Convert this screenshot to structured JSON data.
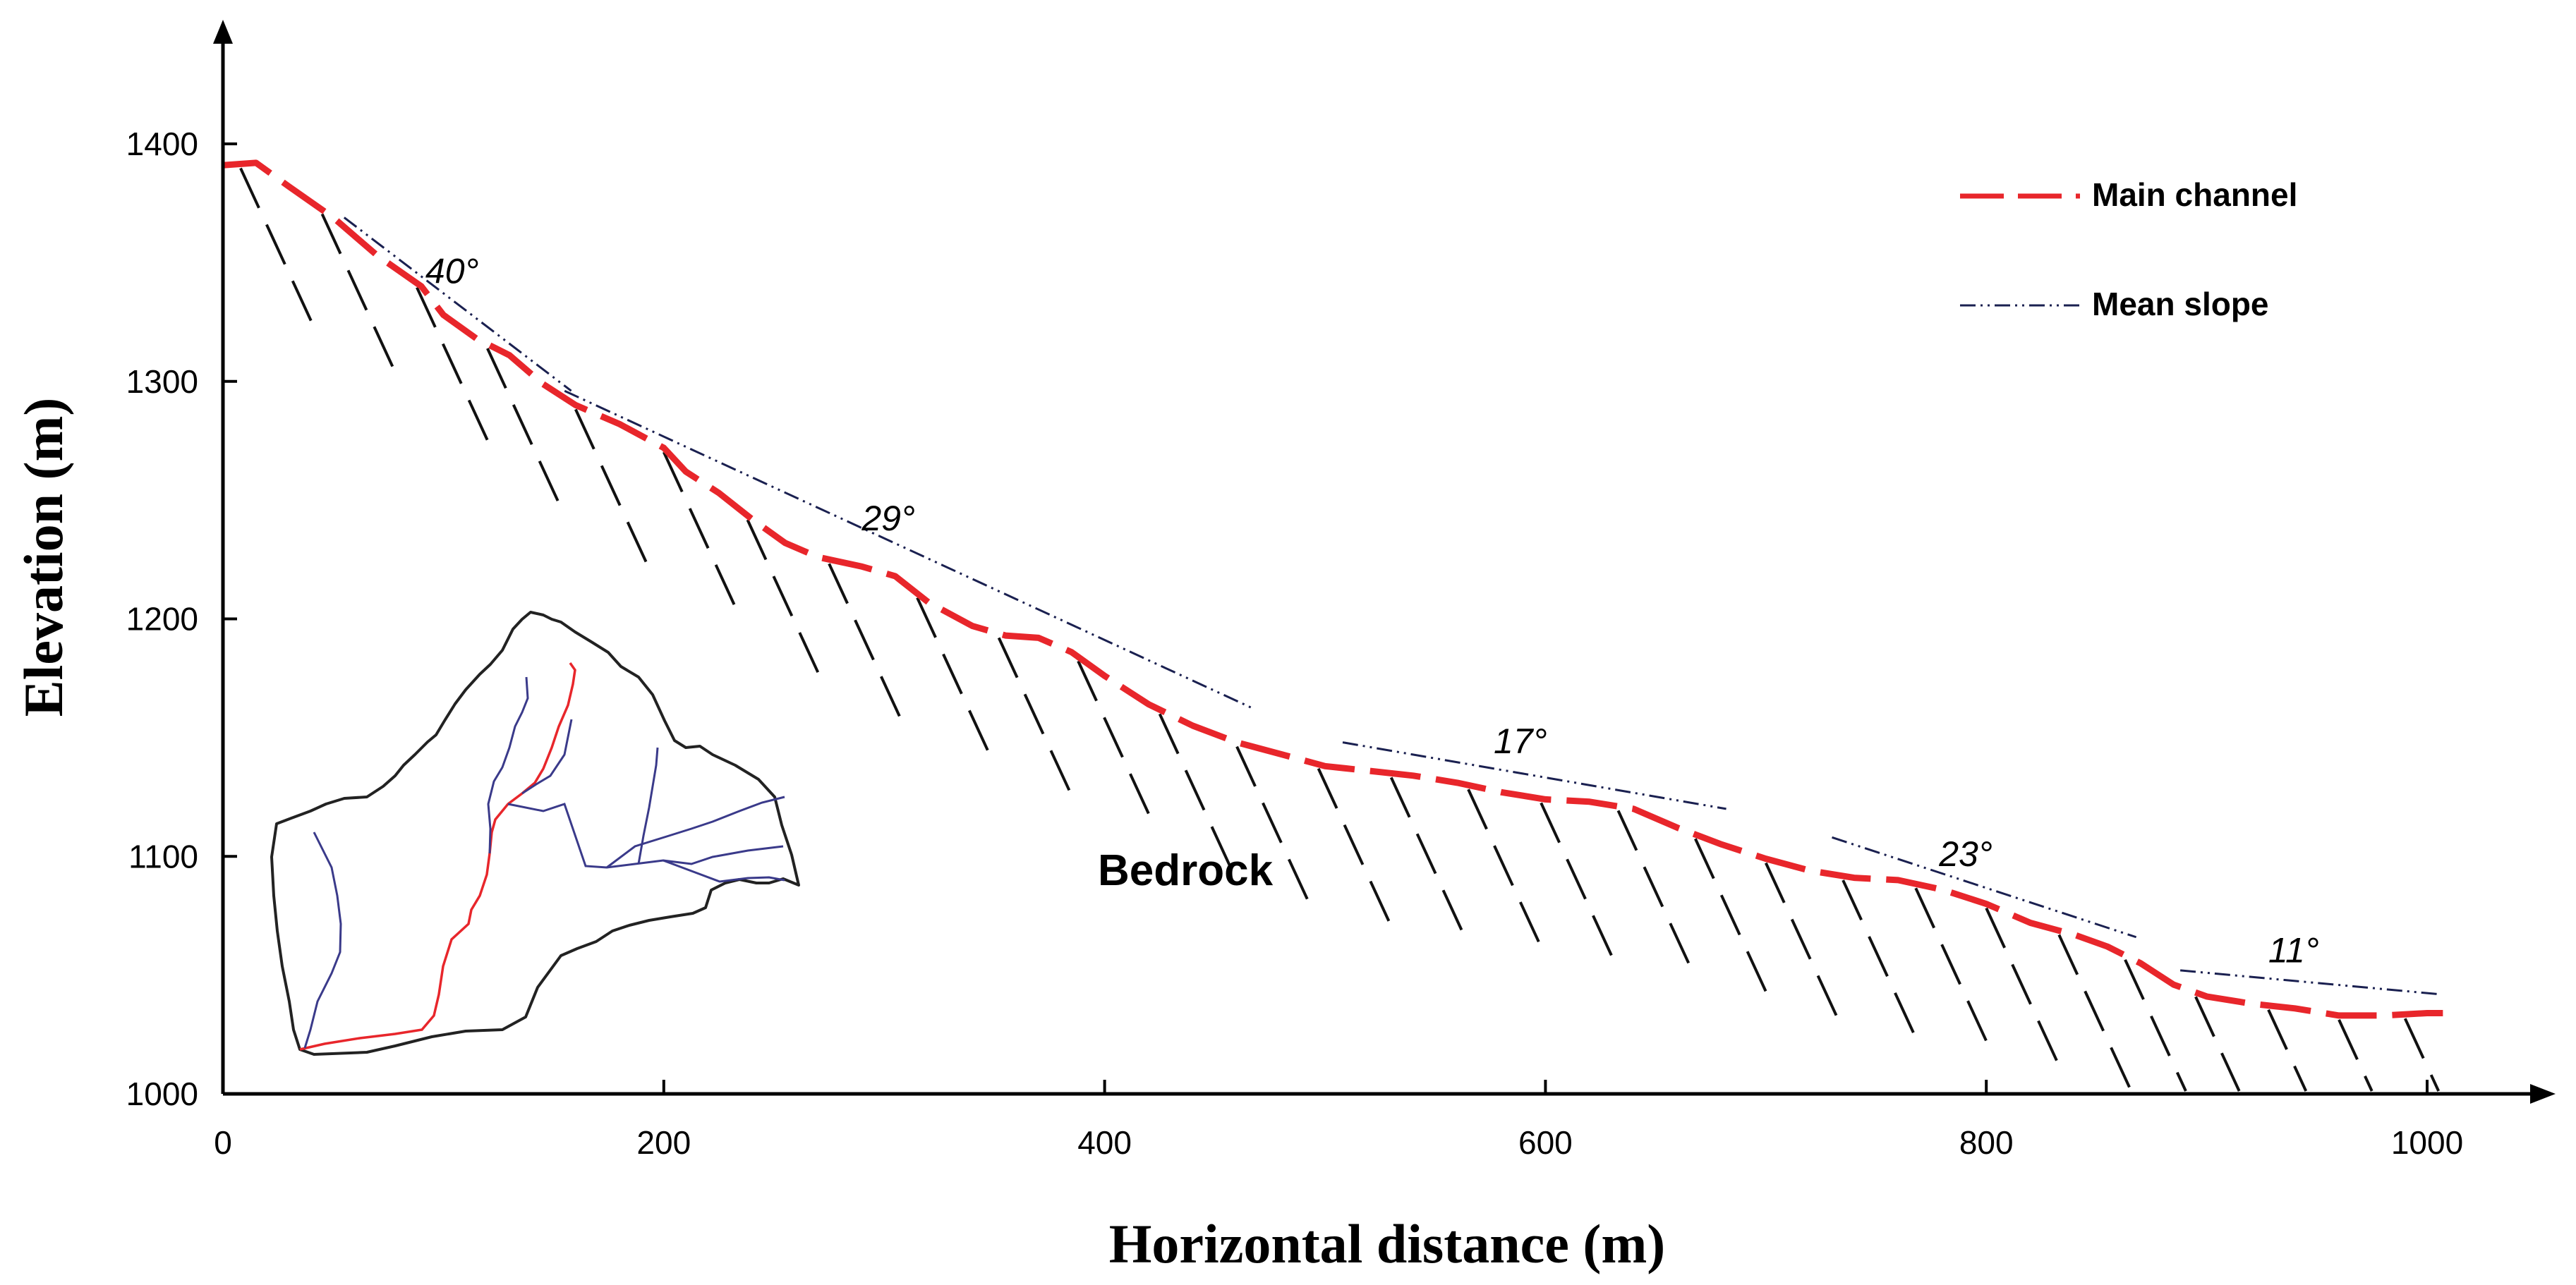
{
  "chart_data": {
    "type": "line",
    "title": "",
    "xlabel": "Horizontal distance (m)",
    "ylabel": "Elevation (m)",
    "xlim": [
      0,
      1040
    ],
    "ylim": [
      1000,
      1440
    ],
    "x_ticks": [
      0,
      200,
      400,
      600,
      800,
      1000
    ],
    "y_ticks": [
      1000,
      1100,
      1200,
      1300,
      1400
    ],
    "x_tick_labels": [
      "0",
      "200",
      "400",
      "600",
      "800",
      "1000"
    ],
    "y_tick_labels": [
      "1000",
      "1100",
      "1200",
      "1300",
      "1400"
    ],
    "series": [
      {
        "name": "Main channel",
        "style": "dashed",
        "color": "#e8262b",
        "x": [
          0,
          15,
          30,
          50,
          70,
          90,
          100,
          115,
          130,
          145,
          160,
          180,
          200,
          210,
          225,
          240,
          255,
          270,
          290,
          305,
          320,
          340,
          355,
          370,
          385,
          400,
          420,
          440,
          460,
          480,
          500,
          520,
          540,
          560,
          580,
          600,
          620,
          640,
          660,
          680,
          700,
          720,
          740,
          760,
          780,
          800,
          820,
          840,
          855,
          870,
          885,
          900,
          920,
          940,
          960,
          980,
          1000,
          1010
        ],
        "y": [
          1391,
          1392,
          1382,
          1369,
          1353,
          1340,
          1328,
          1318,
          1311,
          1299,
          1290,
          1282,
          1272,
          1262,
          1253,
          1242,
          1232,
          1226,
          1222,
          1218,
          1207,
          1197,
          1193,
          1192,
          1186,
          1176,
          1164,
          1155,
          1148,
          1143,
          1138,
          1136,
          1134,
          1131,
          1127,
          1124,
          1123,
          1120,
          1112,
          1105,
          1099,
          1094,
          1091,
          1090,
          1086,
          1080,
          1072,
          1067,
          1062,
          1055,
          1046,
          1041,
          1038,
          1036,
          1033,
          1033,
          1034,
          1034
        ]
      },
      {
        "name": "Mean slope",
        "style": "dash-dot-dot",
        "color": "#1a2050",
        "segments": [
          {
            "x": [
              55,
              158
            ],
            "y": [
              1369,
              1296
            ],
            "angle": "40°"
          },
          {
            "x": [
              155,
              468
            ],
            "y": [
              1296,
              1162
            ],
            "angle": "29°"
          },
          {
            "x": [
              508,
              682
            ],
            "y": [
              1148,
              1120
            ],
            "angle": "17°"
          },
          {
            "x": [
              730,
              868
            ],
            "y": [
              1108,
              1066
            ],
            "angle": "23°"
          },
          {
            "x": [
              888,
              1005
            ],
            "y": [
              1052,
              1042
            ],
            "angle": "11°"
          }
        ]
      }
    ],
    "bedrock_hatch_x": [
      8,
      45,
      88,
      120,
      160,
      200,
      238,
      275,
      315,
      352,
      388,
      425,
      460,
      497,
      530,
      565,
      598,
      633,
      668,
      700,
      735,
      768,
      800,
      833,
      863,
      895,
      928,
      960,
      990
    ],
    "annotations": {
      "angles": [
        "40",
        "29",
        "17",
        "23",
        "11"
      ],
      "degree_symbol": "°",
      "bedrock": "Bedrock"
    },
    "legend": {
      "position": "top-right",
      "entries": [
        "Main channel",
        "Mean slope"
      ]
    },
    "inset": {
      "description_label": "catchment map",
      "outline_color": "#222222",
      "main_channel_color": "#e8262b",
      "tributary_color": "#3a3a8a"
    }
  }
}
